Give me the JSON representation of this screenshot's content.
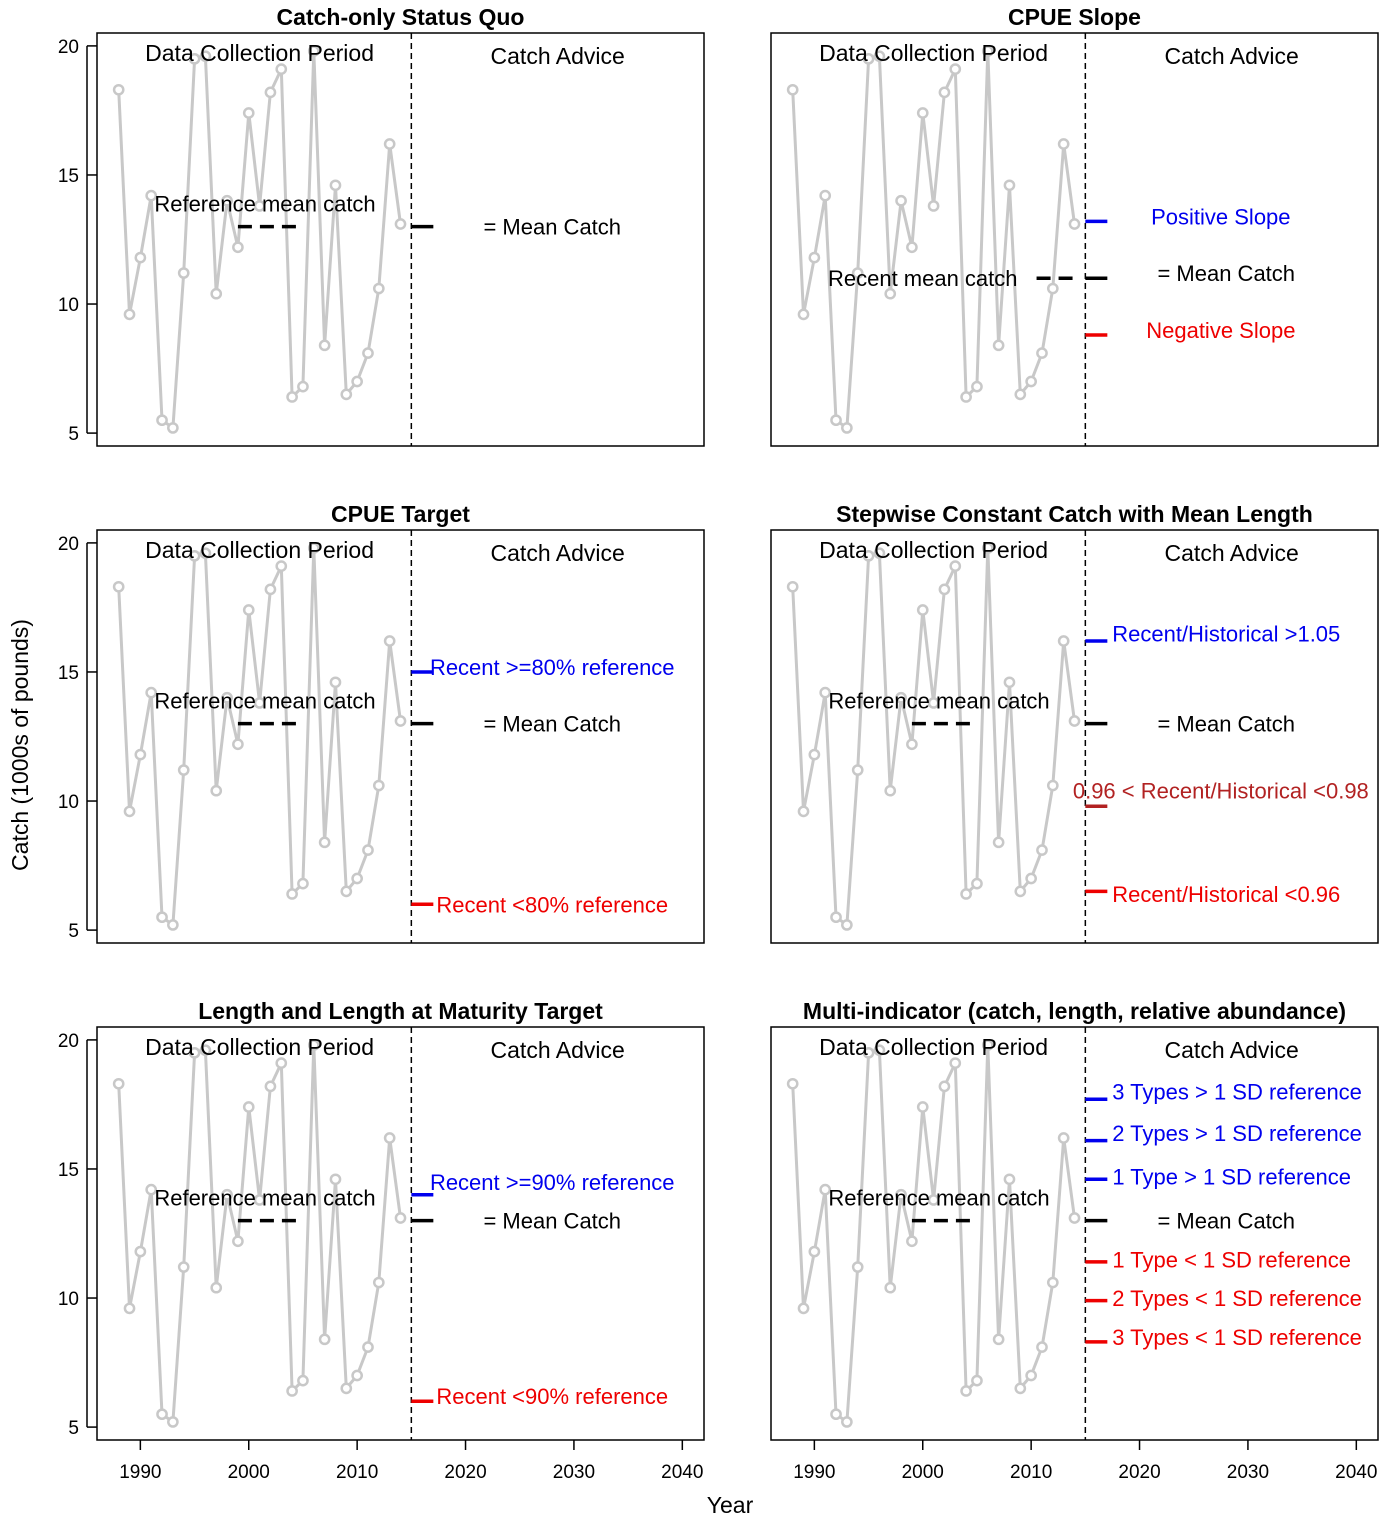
{
  "figure": {
    "ylabel": "Catch (1000s of pounds)",
    "xlabel": "Year",
    "colors": {
      "catch_line": "#c8c8c8",
      "positive": "#0000ee",
      "negative": "#ee0000",
      "neutral": "#000000",
      "intermediate": "#b22222"
    }
  },
  "chart_data": [
    {
      "type": "line",
      "title": "Catch-only Status Quo",
      "xlim": [
        1986,
        2042
      ],
      "ylim": [
        4.5,
        20.5
      ],
      "xticks": [
        1990,
        2000,
        2010,
        2020,
        2030,
        2040
      ],
      "yticks": [
        5,
        10,
        15,
        20
      ],
      "series": [
        {
          "x": [
            1988,
            1989,
            1990,
            1991,
            1992,
            1993,
            1994,
            1995,
            1996,
            1997,
            1998,
            1999,
            2000,
            2001,
            2002,
            2003,
            2004,
            2005,
            2006,
            2007,
            2008,
            2009,
            2010,
            2011,
            2012,
            2013,
            2014
          ],
          "y": [
            18.3,
            9.6,
            11.8,
            14.2,
            5.5,
            5.2,
            11.2,
            19.5,
            19.6,
            10.4,
            14.0,
            12.2,
            17.4,
            13.8,
            18.2,
            19.1,
            6.4,
            6.8,
            19.8,
            8.4,
            14.6,
            6.5,
            7.0,
            8.1,
            10.6,
            16.2,
            13.1
          ]
        }
      ],
      "divider_x": 2015,
      "period_labels": [
        "Data Collection Period",
        "Catch Advice"
      ],
      "reference": {
        "label": "Reference mean catch",
        "y": 13.0,
        "x_start": 1999,
        "x_end": 2005,
        "label_x": 2001.5,
        "label_y": 13.9
      },
      "advice": [
        {
          "label": "= Mean Catch",
          "y": 13.0,
          "color": "neutral",
          "label_x": 2028,
          "label_y": 13.0
        }
      ]
    },
    {
      "type": "line",
      "title": "CPUE Slope",
      "xlim": [
        1986,
        2042
      ],
      "ylim": [
        4.5,
        20.5
      ],
      "xticks": [
        1990,
        2000,
        2010,
        2020,
        2030,
        2040
      ],
      "yticks": [
        5,
        10,
        15,
        20
      ],
      "series": [
        {
          "x": [
            1988,
            1989,
            1990,
            1991,
            1992,
            1993,
            1994,
            1995,
            1996,
            1997,
            1998,
            1999,
            2000,
            2001,
            2002,
            2003,
            2004,
            2005,
            2006,
            2007,
            2008,
            2009,
            2010,
            2011,
            2012,
            2013,
            2014
          ],
          "y": [
            18.3,
            9.6,
            11.8,
            14.2,
            5.5,
            5.2,
            11.2,
            19.5,
            19.6,
            10.4,
            14.0,
            12.2,
            17.4,
            13.8,
            18.2,
            19.1,
            6.4,
            6.8,
            19.8,
            8.4,
            14.6,
            6.5,
            7.0,
            8.1,
            10.6,
            16.2,
            13.1
          ]
        }
      ],
      "divider_x": 2015,
      "period_labels": [
        "Data Collection Period",
        "Catch Advice"
      ],
      "reference": {
        "label": "Recent mean catch",
        "y": 11.0,
        "x_start": 2010.5,
        "x_end": 2014.5,
        "label_x": 2000.0,
        "label_y": 11.0
      },
      "advice": [
        {
          "label": "Positive Slope",
          "y": 13.2,
          "color": "positive",
          "label_x": 2027.5,
          "label_y": 13.4
        },
        {
          "label": "= Mean Catch",
          "y": 11.0,
          "color": "neutral",
          "label_x": 2028.0,
          "label_y": 11.2
        },
        {
          "label": "Negative Slope",
          "y": 8.8,
          "color": "negative",
          "label_x": 2027.5,
          "label_y": 9.0
        }
      ]
    },
    {
      "type": "line",
      "title": "CPUE Target",
      "xlim": [
        1986,
        2042
      ],
      "ylim": [
        4.5,
        20.5
      ],
      "xticks": [
        1990,
        2000,
        2010,
        2020,
        2030,
        2040
      ],
      "yticks": [
        5,
        10,
        15,
        20
      ],
      "series": [
        {
          "x": [
            1988,
            1989,
            1990,
            1991,
            1992,
            1993,
            1994,
            1995,
            1996,
            1997,
            1998,
            1999,
            2000,
            2001,
            2002,
            2003,
            2004,
            2005,
            2006,
            2007,
            2008,
            2009,
            2010,
            2011,
            2012,
            2013,
            2014
          ],
          "y": [
            18.3,
            9.6,
            11.8,
            14.2,
            5.5,
            5.2,
            11.2,
            19.5,
            19.6,
            10.4,
            14.0,
            12.2,
            17.4,
            13.8,
            18.2,
            19.1,
            6.4,
            6.8,
            19.8,
            8.4,
            14.6,
            6.5,
            7.0,
            8.1,
            10.6,
            16.2,
            13.1
          ]
        }
      ],
      "divider_x": 2015,
      "period_labels": [
        "Data Collection Period",
        "Catch Advice"
      ],
      "reference": {
        "label": "Reference mean catch",
        "y": 13.0,
        "x_start": 1999,
        "x_end": 2005,
        "label_x": 2001.5,
        "label_y": 13.9
      },
      "advice": [
        {
          "label": "Recent >=80% reference",
          "y": 15.0,
          "color": "positive",
          "label_x": 2028.0,
          "label_y": 15.2
        },
        {
          "label": "= Mean Catch",
          "y": 13.0,
          "color": "neutral",
          "label_x": 2028.0,
          "label_y": 13.0
        },
        {
          "label": "Recent <80% reference",
          "y": 6.0,
          "color": "negative",
          "label_x": 2028.0,
          "label_y": 6.0
        }
      ]
    },
    {
      "type": "line",
      "title": "Stepwise Constant Catch with Mean Length",
      "xlim": [
        1986,
        2042
      ],
      "ylim": [
        4.5,
        20.5
      ],
      "xticks": [
        1990,
        2000,
        2010,
        2020,
        2030,
        2040
      ],
      "yticks": [
        5,
        10,
        15,
        20
      ],
      "series": [
        {
          "x": [
            1988,
            1989,
            1990,
            1991,
            1992,
            1993,
            1994,
            1995,
            1996,
            1997,
            1998,
            1999,
            2000,
            2001,
            2002,
            2003,
            2004,
            2005,
            2006,
            2007,
            2008,
            2009,
            2010,
            2011,
            2012,
            2013,
            2014
          ],
          "y": [
            18.3,
            9.6,
            11.8,
            14.2,
            5.5,
            5.2,
            11.2,
            19.5,
            19.6,
            10.4,
            14.0,
            12.2,
            17.4,
            13.8,
            18.2,
            19.1,
            6.4,
            6.8,
            19.8,
            8.4,
            14.6,
            6.5,
            7.0,
            8.1,
            10.6,
            16.2,
            13.1
          ]
        }
      ],
      "divider_x": 2015,
      "period_labels": [
        "Data Collection Period",
        "Catch Advice"
      ],
      "reference": {
        "label": "Reference mean catch",
        "y": 13.0,
        "x_start": 1999,
        "x_end": 2005,
        "label_x": 2001.5,
        "label_y": 13.9
      },
      "advice": [
        {
          "label": "Recent/Historical >1.05",
          "y": 16.2,
          "color": "positive",
          "label_x": 2028.0,
          "label_y": 16.5
        },
        {
          "label": "= Mean Catch",
          "y": 13.0,
          "color": "neutral",
          "label_x": 2028.0,
          "label_y": 13.0
        },
        {
          "label": "0.96 < Recent/Historical <0.98",
          "y": 9.8,
          "color": "intermediate",
          "label_x": 2027.5,
          "label_y": 10.4
        },
        {
          "label": "Recent/Historical <0.96",
          "y": 6.5,
          "color": "negative",
          "label_x": 2028.0,
          "label_y": 6.4
        }
      ]
    },
    {
      "type": "line",
      "title": "Length and Length at Maturity Target",
      "xlim": [
        1986,
        2042
      ],
      "ylim": [
        4.5,
        20.5
      ],
      "xticks": [
        1990,
        2000,
        2010,
        2020,
        2030,
        2040
      ],
      "yticks": [
        5,
        10,
        15,
        20
      ],
      "series": [
        {
          "x": [
            1988,
            1989,
            1990,
            1991,
            1992,
            1993,
            1994,
            1995,
            1996,
            1997,
            1998,
            1999,
            2000,
            2001,
            2002,
            2003,
            2004,
            2005,
            2006,
            2007,
            2008,
            2009,
            2010,
            2011,
            2012,
            2013,
            2014
          ],
          "y": [
            18.3,
            9.6,
            11.8,
            14.2,
            5.5,
            5.2,
            11.2,
            19.5,
            19.6,
            10.4,
            14.0,
            12.2,
            17.4,
            13.8,
            18.2,
            19.1,
            6.4,
            6.8,
            19.8,
            8.4,
            14.6,
            6.5,
            7.0,
            8.1,
            10.6,
            16.2,
            13.1
          ]
        }
      ],
      "divider_x": 2015,
      "period_labels": [
        "Data Collection Period",
        "Catch Advice"
      ],
      "reference": {
        "label": "Reference mean catch",
        "y": 13.0,
        "x_start": 1999,
        "x_end": 2005,
        "label_x": 2001.5,
        "label_y": 13.9
      },
      "advice": [
        {
          "label": "Recent >=90% reference",
          "y": 14.0,
          "color": "positive",
          "label_x": 2028.0,
          "label_y": 14.5
        },
        {
          "label": "= Mean Catch",
          "y": 13.0,
          "color": "neutral",
          "label_x": 2028.0,
          "label_y": 13.0
        },
        {
          "label": "Recent <90% reference",
          "y": 6.0,
          "color": "negative",
          "label_x": 2028.0,
          "label_y": 6.2
        }
      ]
    },
    {
      "type": "line",
      "title": "Multi-indicator (catch, length, relative abundance)",
      "xlim": [
        1986,
        2042
      ],
      "ylim": [
        4.5,
        20.5
      ],
      "xticks": [
        1990,
        2000,
        2010,
        2020,
        2030,
        2040
      ],
      "yticks": [
        5,
        10,
        15,
        20
      ],
      "series": [
        {
          "x": [
            1988,
            1989,
            1990,
            1991,
            1992,
            1993,
            1994,
            1995,
            1996,
            1997,
            1998,
            1999,
            2000,
            2001,
            2002,
            2003,
            2004,
            2005,
            2006,
            2007,
            2008,
            2009,
            2010,
            2011,
            2012,
            2013,
            2014
          ],
          "y": [
            18.3,
            9.6,
            11.8,
            14.2,
            5.5,
            5.2,
            11.2,
            19.5,
            19.6,
            10.4,
            14.0,
            12.2,
            17.4,
            13.8,
            18.2,
            19.1,
            6.4,
            6.8,
            19.8,
            8.4,
            14.6,
            6.5,
            7.0,
            8.1,
            10.6,
            16.2,
            13.1
          ]
        }
      ],
      "divider_x": 2015,
      "period_labels": [
        "Data Collection Period",
        "Catch Advice"
      ],
      "reference": {
        "label": "Reference mean catch",
        "y": 13.0,
        "x_start": 1999,
        "x_end": 2005,
        "label_x": 2001.5,
        "label_y": 13.9
      },
      "advice": [
        {
          "label": "3 Types > 1 SD reference",
          "y": 17.7,
          "color": "positive",
          "label_x": 2029.0,
          "label_y": 18.0
        },
        {
          "label": "2 Types > 1 SD reference",
          "y": 16.1,
          "color": "positive",
          "label_x": 2029.0,
          "label_y": 16.4
        },
        {
          "label": "1 Type > 1 SD reference",
          "y": 14.6,
          "color": "positive",
          "label_x": 2028.5,
          "label_y": 14.7
        },
        {
          "label": "= Mean Catch",
          "y": 13.0,
          "color": "neutral",
          "label_x": 2028.0,
          "label_y": 13.0
        },
        {
          "label": "1 Type < 1 SD reference",
          "y": 11.4,
          "color": "negative",
          "label_x": 2028.5,
          "label_y": 11.5
        },
        {
          "label": "2 Types < 1 SD reference",
          "y": 9.9,
          "color": "negative",
          "label_x": 2029.0,
          "label_y": 10.0
        },
        {
          "label": "3 Types < 1 SD reference",
          "y": 8.3,
          "color": "negative",
          "label_x": 2029.0,
          "label_y": 8.5
        }
      ]
    }
  ]
}
